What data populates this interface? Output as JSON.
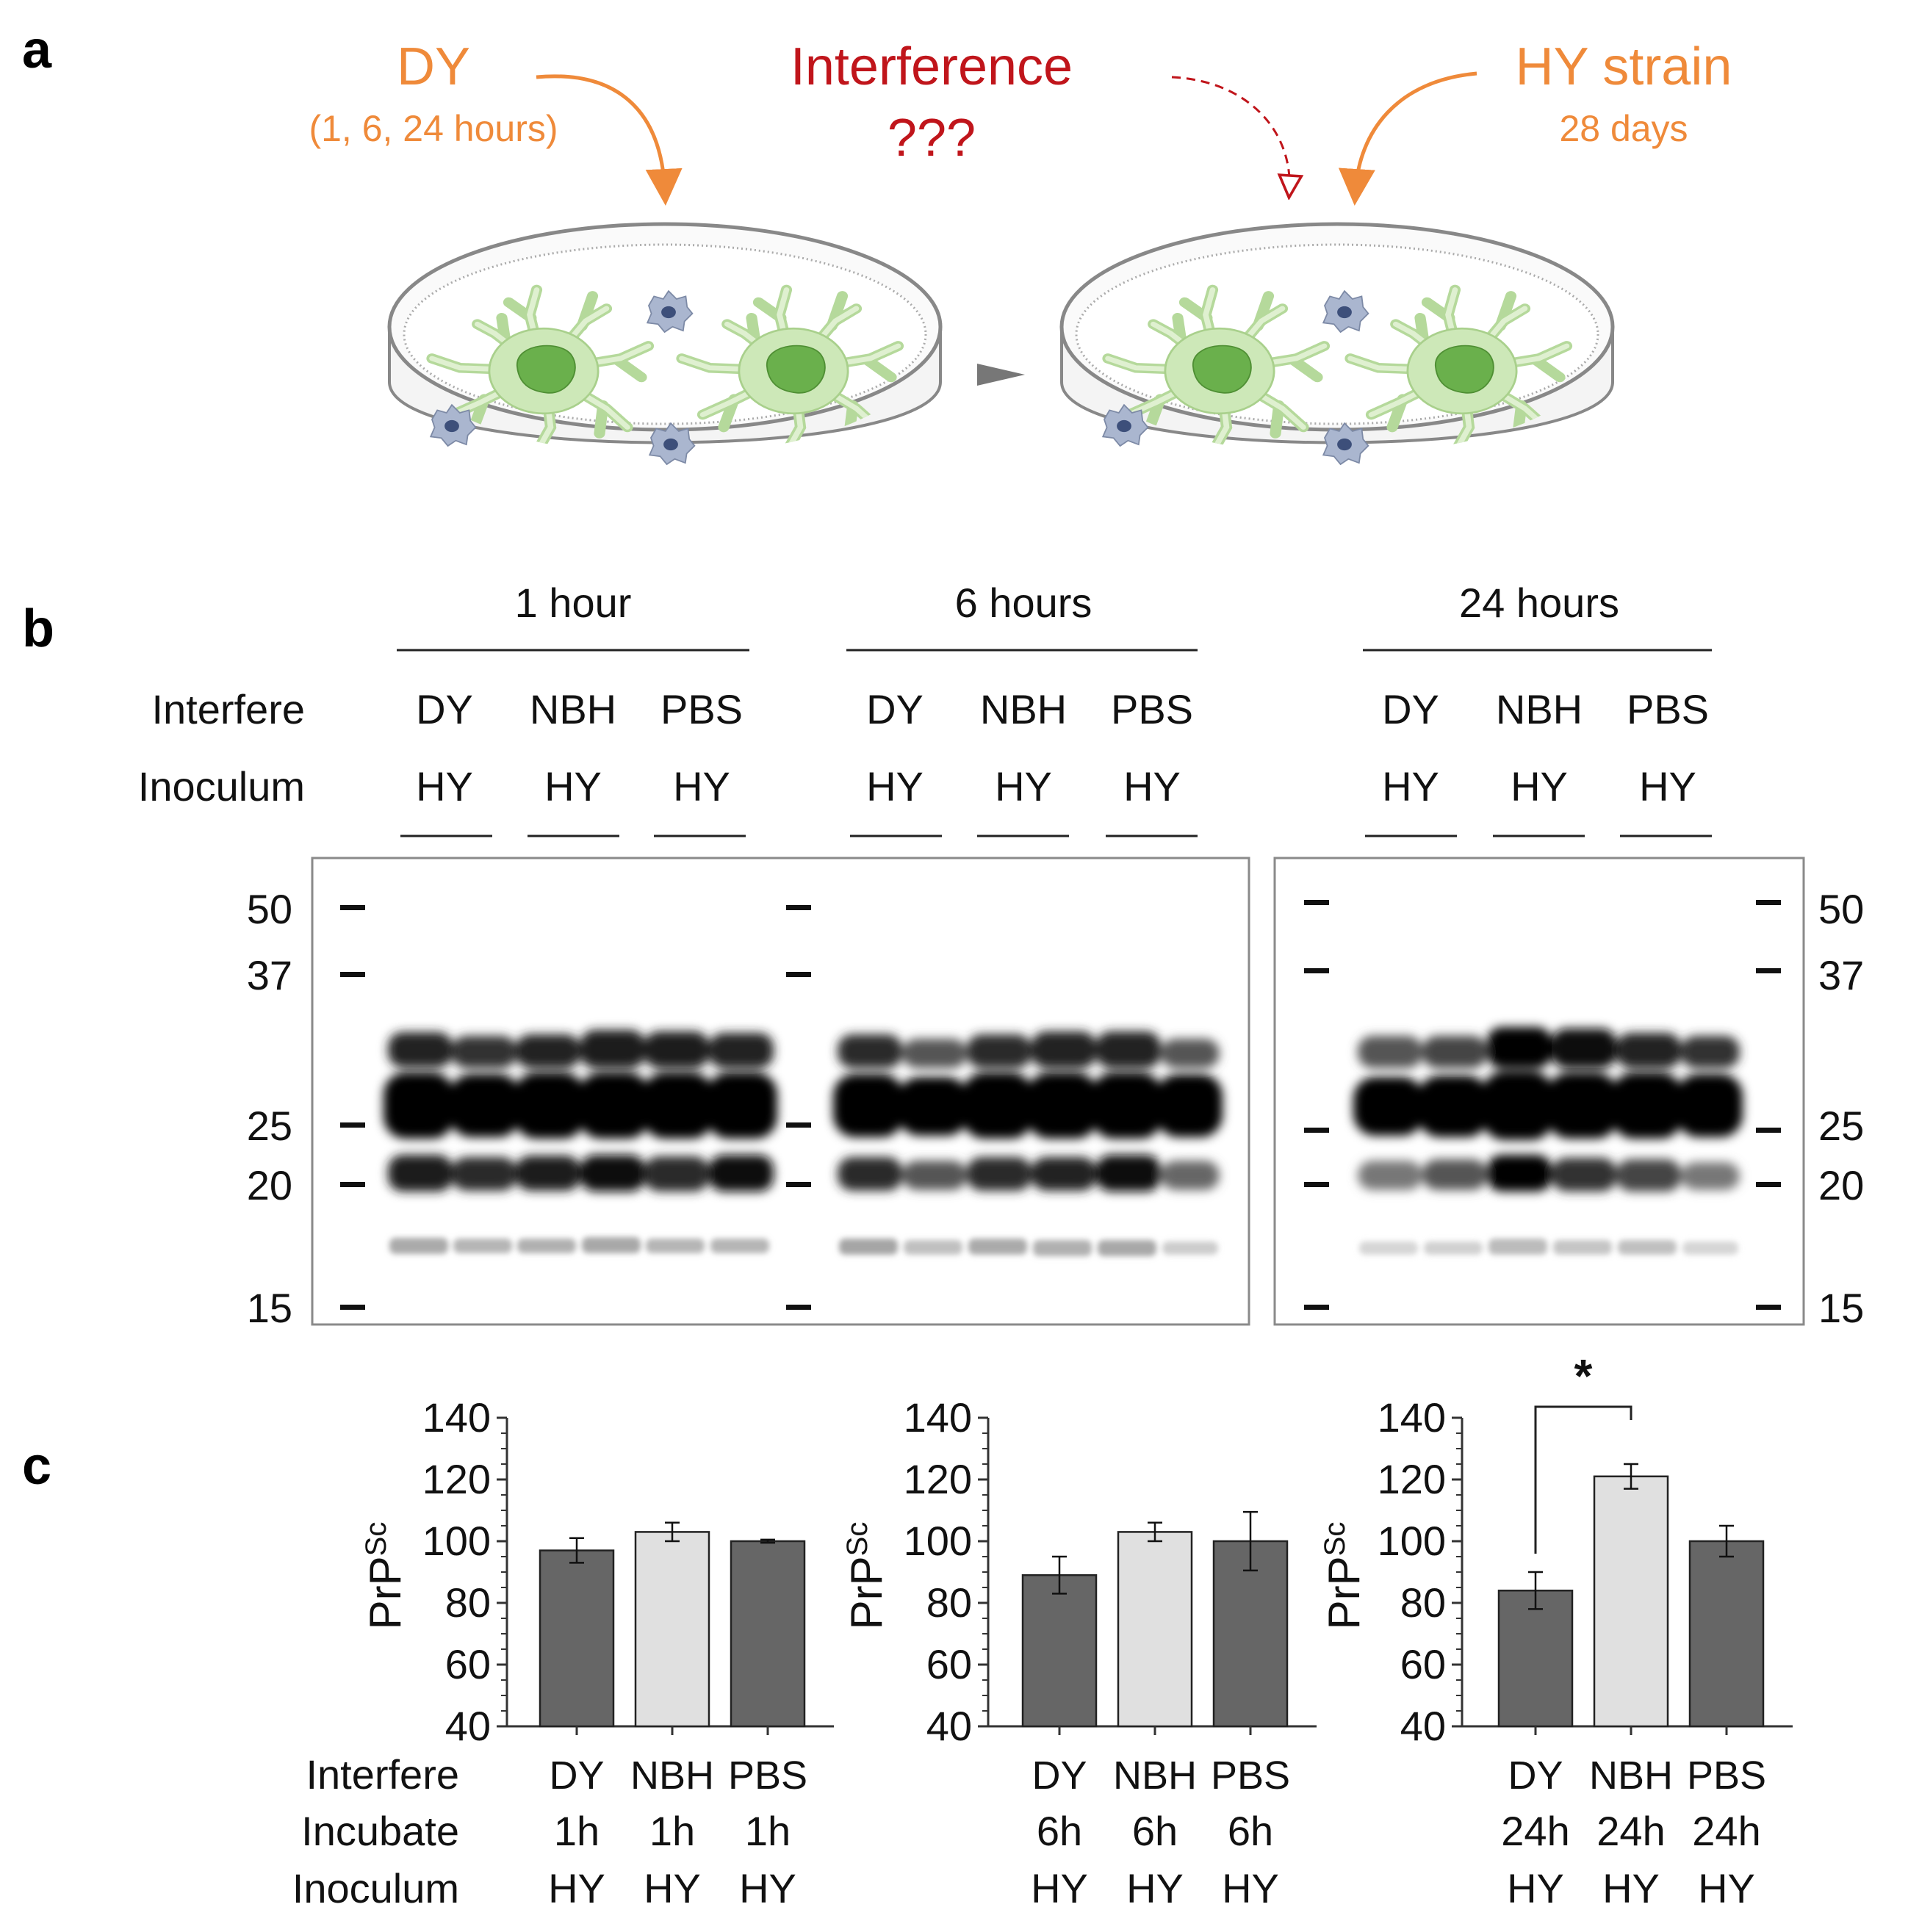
{
  "panel_labels": {
    "a": "a",
    "b": "b",
    "c": "c"
  },
  "panel_a": {
    "dy_label": "DY",
    "dy_times": "(1, 6, 24 hours)",
    "interference_label": "Interference",
    "interference_q": "???",
    "hy_label": "HY strain",
    "hy_days": "28 days",
    "colors": {
      "orange": "#ef8a3a",
      "red": "#c0151b",
      "cell_green": "#cde8b8",
      "nucleus_green": "#6ab04c",
      "microglia": "#8e9cb8"
    }
  },
  "panel_b": {
    "groups": [
      {
        "title": "1 hour",
        "interfere": [
          "DY",
          "NBH",
          "PBS"
        ],
        "inoculum": [
          "HY",
          "HY",
          "HY"
        ]
      },
      {
        "title": "6 hours",
        "interfere": [
          "DY",
          "NBH",
          "PBS"
        ],
        "inoculum": [
          "HY",
          "HY",
          "HY"
        ]
      },
      {
        "title": "24 hours",
        "interfere": [
          "DY",
          "NBH",
          "PBS"
        ],
        "inoculum": [
          "HY",
          "HY",
          "HY"
        ]
      }
    ],
    "row_labels": {
      "interfere": "Interfere",
      "inoculum": "Inoculum"
    },
    "mw_markers": [
      "50",
      "37",
      "25",
      "20",
      "15"
    ]
  },
  "chart_data": [
    {
      "type": "bar",
      "categories": [
        "DY",
        "NBH",
        "PBS"
      ],
      "incubate": [
        "1h",
        "1h",
        "1h"
      ],
      "inoculum": [
        "HY",
        "HY",
        "HY"
      ],
      "values": [
        97,
        103,
        100
      ],
      "errors": [
        4,
        3,
        0.5
      ],
      "bar_colors": [
        "#666666",
        "#e0e0e0",
        "#666666"
      ],
      "ylabel": "PrP",
      "ylabel_sup": "Sc",
      "ylim": [
        40,
        140
      ],
      "yticks": [
        "40",
        "60",
        "80",
        "100",
        "120",
        "140"
      ]
    },
    {
      "type": "bar",
      "categories": [
        "DY",
        "NBH",
        "PBS"
      ],
      "incubate": [
        "6h",
        "6h",
        "6h"
      ],
      "inoculum": [
        "HY",
        "HY",
        "HY"
      ],
      "values": [
        89,
        103,
        100
      ],
      "errors": [
        6,
        3,
        9.5
      ],
      "bar_colors": [
        "#666666",
        "#e0e0e0",
        "#666666"
      ],
      "ylabel": "PrP",
      "ylabel_sup": "Sc",
      "ylim": [
        40,
        140
      ],
      "yticks": [
        "40",
        "60",
        "80",
        "100",
        "120",
        "140"
      ]
    },
    {
      "type": "bar",
      "categories": [
        "DY",
        "NBH",
        "PBS"
      ],
      "incubate": [
        "24h",
        "24h",
        "24h"
      ],
      "inoculum": [
        "HY",
        "HY",
        "HY"
      ],
      "values": [
        84,
        121,
        100
      ],
      "errors": [
        6,
        4,
        5
      ],
      "bar_colors": [
        "#666666",
        "#e0e0e0",
        "#666666"
      ],
      "ylabel": "PrP",
      "ylabel_sup": "Sc",
      "ylim": [
        40,
        140
      ],
      "yticks": [
        "40",
        "60",
        "80",
        "100",
        "120",
        "140"
      ],
      "significance": "*"
    }
  ],
  "panel_c_row_labels": {
    "interfere": "Interfere",
    "incubate": "Incubate",
    "inoculum": "Inoculum"
  }
}
